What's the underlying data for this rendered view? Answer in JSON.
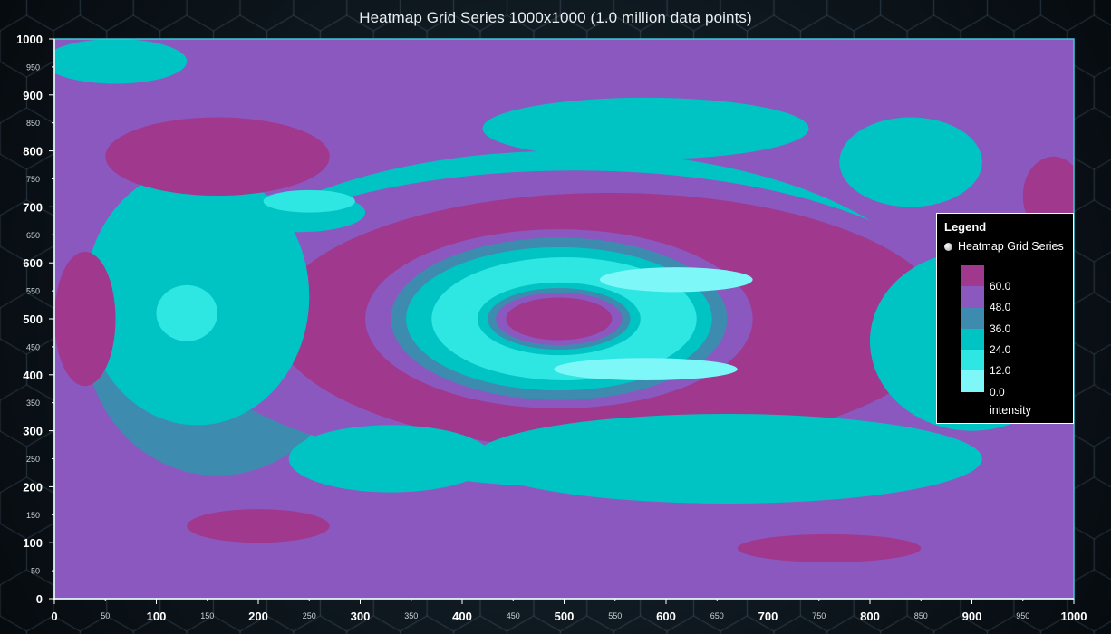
{
  "chart_data": {
    "type": "heatmap",
    "title": "Heatmap Grid Series 1000x1000 (1.0 million data points)",
    "xlim": [
      0,
      1000
    ],
    "ylim": [
      0,
      1000
    ],
    "grid": false,
    "x_ticks_major": [
      "0",
      "100",
      "200",
      "300",
      "400",
      "500",
      "600",
      "700",
      "800",
      "900",
      "1000"
    ],
    "x_ticks_minor": [
      "50",
      "150",
      "250",
      "350",
      "450",
      "550",
      "650",
      "750",
      "850",
      "950"
    ],
    "y_ticks_major": [
      "0",
      "100",
      "200",
      "300",
      "400",
      "500",
      "600",
      "700",
      "800",
      "900",
      "1000"
    ],
    "y_ticks_minor": [
      "50",
      "150",
      "250",
      "350",
      "450",
      "550",
      "650",
      "750",
      "850",
      "950"
    ],
    "color_steps": [
      {
        "value": 0.0,
        "label": "0.0",
        "color": "#7df7f7"
      },
      {
        "value": 12.0,
        "label": "12.0",
        "color": "#2ee6e2"
      },
      {
        "value": 24.0,
        "label": "24.0",
        "color": "#00c4c4"
      },
      {
        "value": 36.0,
        "label": "36.0",
        "color": "#3e8bb0"
      },
      {
        "value": 48.0,
        "label": "48.0",
        "color": "#8b58c0"
      },
      {
        "value": 60.0,
        "label": "60.0",
        "color": "#a0388e"
      }
    ],
    "regions": [
      {
        "level": 2,
        "cx": 500,
        "cy": 500,
        "rx": 370,
        "ry": 300
      },
      {
        "level": 3,
        "cx": 160,
        "cy": 470,
        "rx": 130,
        "ry": 250
      },
      {
        "level": 4,
        "cx": 510,
        "cy": 495,
        "rx": 390,
        "ry": 270
      },
      {
        "level": 5,
        "cx": 545,
        "cy": 495,
        "rx": 330,
        "ry": 230
      },
      {
        "level": 4,
        "cx": 495,
        "cy": 500,
        "rx": 190,
        "ry": 160
      },
      {
        "level": 3,
        "cx": 495,
        "cy": 500,
        "rx": 165,
        "ry": 145
      },
      {
        "level": 2,
        "cx": 495,
        "cy": 500,
        "rx": 150,
        "ry": 128
      },
      {
        "level": 1,
        "cx": 500,
        "cy": 500,
        "rx": 130,
        "ry": 110
      },
      {
        "level": 0,
        "cx": 610,
        "cy": 570,
        "rx": 75,
        "ry": 22
      },
      {
        "level": 0,
        "cx": 580,
        "cy": 410,
        "rx": 90,
        "ry": 20
      },
      {
        "level": 2,
        "cx": 495,
        "cy": 500,
        "rx": 80,
        "ry": 65
      },
      {
        "level": 3,
        "cx": 495,
        "cy": 500,
        "rx": 70,
        "ry": 55
      },
      {
        "level": 4,
        "cx": 495,
        "cy": 500,
        "rx": 62,
        "ry": 47
      },
      {
        "level": 5,
        "cx": 495,
        "cy": 500,
        "rx": 52,
        "ry": 38
      },
      {
        "level": 2,
        "cx": 140,
        "cy": 540,
        "rx": 110,
        "ry": 230
      },
      {
        "level": 1,
        "cx": 130,
        "cy": 510,
        "rx": 30,
        "ry": 50
      },
      {
        "level": 2,
        "cx": 240,
        "cy": 690,
        "rx": 65,
        "ry": 35
      },
      {
        "level": 1,
        "cx": 250,
        "cy": 710,
        "rx": 45,
        "ry": 20
      },
      {
        "level": 5,
        "cx": 160,
        "cy": 790,
        "rx": 110,
        "ry": 70
      },
      {
        "level": 2,
        "cx": 580,
        "cy": 840,
        "rx": 160,
        "ry": 55
      },
      {
        "level": 2,
        "cx": 840,
        "cy": 780,
        "rx": 70,
        "ry": 80
      },
      {
        "level": 2,
        "cx": 330,
        "cy": 250,
        "rx": 100,
        "ry": 60
      },
      {
        "level": 2,
        "cx": 660,
        "cy": 250,
        "rx": 250,
        "ry": 80
      },
      {
        "level": 2,
        "cx": 900,
        "cy": 460,
        "rx": 100,
        "ry": 160
      },
      {
        "level": 2,
        "cx": 60,
        "cy": 960,
        "rx": 70,
        "ry": 40
      },
      {
        "level": 5,
        "cx": 30,
        "cy": 500,
        "rx": 30,
        "ry": 120
      },
      {
        "level": 5,
        "cx": 200,
        "cy": 130,
        "rx": 70,
        "ry": 30
      },
      {
        "level": 5,
        "cx": 760,
        "cy": 90,
        "rx": 90,
        "ry": 25
      },
      {
        "level": 5,
        "cx": 980,
        "cy": 720,
        "rx": 30,
        "ry": 70
      }
    ]
  },
  "legend": {
    "title": "Legend",
    "series_name": "Heatmap Grid Series",
    "unit_label": "intensity"
  }
}
